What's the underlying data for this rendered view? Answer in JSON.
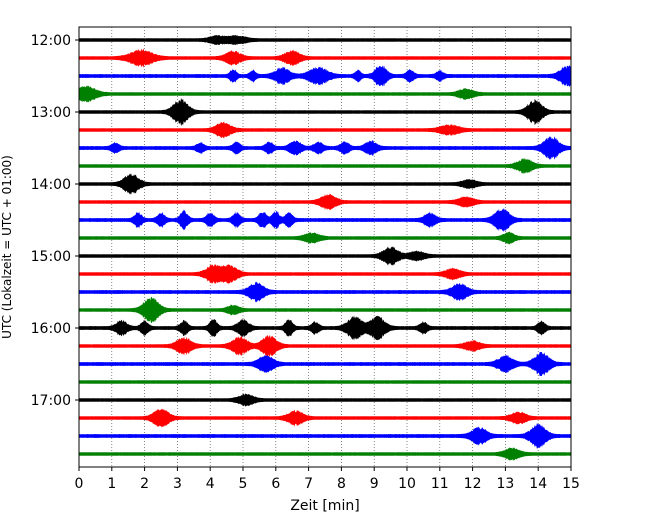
{
  "chart_data": {
    "type": "line",
    "title": "",
    "xlabel": "Zeit  [min]",
    "ylabel": "UTC (Lokalzeit = UTC + 01:00)",
    "xlim": [
      0,
      15
    ],
    "x_ticks": [
      "0",
      "1",
      "2",
      "3",
      "4",
      "5",
      "6",
      "7",
      "8",
      "9",
      "10",
      "11",
      "12",
      "13",
      "14",
      "15"
    ],
    "y_tick_labels": [
      "12:00",
      "13:00",
      "14:00",
      "15:00",
      "16:00",
      "17:00"
    ],
    "grid": "vertical-dotted",
    "colors_cycle": [
      "#000000",
      "#ff0000",
      "#0000ff",
      "#008000"
    ],
    "traces": [
      {
        "start": "12:00",
        "color": "#000000",
        "noise": 0.12,
        "events": [
          [
            4.2,
            0.2,
            0.8
          ],
          [
            4.8,
            0.25,
            0.8
          ]
        ]
      },
      {
        "start": "12:15",
        "color": "#ff0000",
        "noise": 0.12,
        "events": [
          [
            1.9,
            0.3,
            1.8
          ],
          [
            4.7,
            0.2,
            1.5
          ],
          [
            6.5,
            0.2,
            1.6
          ]
        ]
      },
      {
        "start": "12:30",
        "color": "#0000ff",
        "noise": 0.15,
        "events": [
          [
            4.7,
            0.08,
            1.5
          ],
          [
            5.3,
            0.08,
            1.2
          ],
          [
            6.2,
            0.2,
            1.8
          ],
          [
            7.3,
            0.25,
            1.8
          ],
          [
            8.5,
            0.08,
            1.2
          ],
          [
            9.2,
            0.15,
            2.5
          ],
          [
            10.1,
            0.1,
            1.2
          ],
          [
            11.0,
            0.1,
            1.0
          ],
          [
            14.9,
            0.2,
            2.2
          ]
        ]
      },
      {
        "start": "12:45",
        "color": "#008000",
        "noise": 0.12,
        "events": [
          [
            0.2,
            0.25,
            1.8
          ],
          [
            11.8,
            0.2,
            1.0
          ]
        ]
      },
      {
        "start": "13:00",
        "color": "#000000",
        "noise": 0.12,
        "events": [
          [
            3.1,
            0.2,
            2.8
          ],
          [
            13.9,
            0.2,
            2.6
          ]
        ]
      },
      {
        "start": "13:15",
        "color": "#ff0000",
        "noise": 0.12,
        "events": [
          [
            4.4,
            0.2,
            1.6
          ],
          [
            11.3,
            0.25,
            1.0
          ]
        ]
      },
      {
        "start": "13:30",
        "color": "#0000ff",
        "noise": 0.15,
        "events": [
          [
            1.1,
            0.1,
            1.0
          ],
          [
            3.7,
            0.1,
            1.0
          ],
          [
            4.8,
            0.1,
            1.2
          ],
          [
            5.8,
            0.1,
            1.2
          ],
          [
            6.6,
            0.15,
            1.5
          ],
          [
            7.3,
            0.12,
            1.2
          ],
          [
            8.1,
            0.12,
            1.2
          ],
          [
            8.9,
            0.15,
            1.5
          ],
          [
            14.4,
            0.2,
            2.5
          ]
        ]
      },
      {
        "start": "13:45",
        "color": "#008000",
        "noise": 0.12,
        "events": [
          [
            13.6,
            0.2,
            1.5
          ]
        ]
      },
      {
        "start": "14:00",
        "color": "#000000",
        "noise": 0.12,
        "events": [
          [
            1.6,
            0.2,
            2.2
          ],
          [
            11.9,
            0.2,
            0.8
          ]
        ]
      },
      {
        "start": "14:15",
        "color": "#ff0000",
        "noise": 0.12,
        "events": [
          [
            7.6,
            0.2,
            1.6
          ],
          [
            11.8,
            0.2,
            1.0
          ]
        ]
      },
      {
        "start": "14:30",
        "color": "#0000ff",
        "noise": 0.15,
        "events": [
          [
            1.8,
            0.1,
            1.5
          ],
          [
            2.5,
            0.1,
            1.5
          ],
          [
            3.2,
            0.1,
            2.0
          ],
          [
            4.0,
            0.1,
            1.5
          ],
          [
            4.8,
            0.1,
            1.5
          ],
          [
            5.6,
            0.1,
            1.8
          ],
          [
            6.0,
            0.1,
            1.8
          ],
          [
            6.4,
            0.1,
            1.5
          ],
          [
            10.7,
            0.15,
            1.5
          ],
          [
            12.9,
            0.2,
            2.5
          ]
        ]
      },
      {
        "start": "14:45",
        "color": "#008000",
        "noise": 0.12,
        "events": [
          [
            7.1,
            0.2,
            1.0
          ],
          [
            13.1,
            0.15,
            1.2
          ]
        ]
      },
      {
        "start": "15:00",
        "color": "#000000",
        "noise": 0.12,
        "events": [
          [
            9.5,
            0.2,
            2.0
          ],
          [
            10.3,
            0.2,
            0.9
          ]
        ]
      },
      {
        "start": "15:15",
        "color": "#ff0000",
        "noise": 0.12,
        "events": [
          [
            4.1,
            0.2,
            2.0
          ],
          [
            4.6,
            0.2,
            1.8
          ],
          [
            11.4,
            0.2,
            1.1
          ]
        ]
      },
      {
        "start": "15:30",
        "color": "#0000ff",
        "noise": 0.15,
        "events": [
          [
            5.4,
            0.2,
            2.0
          ],
          [
            11.6,
            0.2,
            1.8
          ]
        ]
      },
      {
        "start": "15:45",
        "color": "#008000",
        "noise": 0.12,
        "events": [
          [
            2.2,
            0.2,
            2.8
          ],
          [
            4.7,
            0.15,
            1.0
          ]
        ]
      },
      {
        "start": "16:00",
        "color": "#000000",
        "noise": 0.15,
        "events": [
          [
            1.3,
            0.15,
            1.5
          ],
          [
            2.0,
            0.1,
            1.5
          ],
          [
            3.2,
            0.1,
            1.5
          ],
          [
            4.1,
            0.1,
            2.0
          ],
          [
            5.0,
            0.15,
            1.8
          ],
          [
            6.4,
            0.1,
            1.8
          ],
          [
            7.2,
            0.1,
            1.2
          ],
          [
            8.4,
            0.2,
            2.5
          ],
          [
            9.1,
            0.2,
            2.5
          ],
          [
            10.5,
            0.1,
            1.2
          ],
          [
            14.1,
            0.1,
            1.5
          ]
        ]
      },
      {
        "start": "16:15",
        "color": "#ff0000",
        "noise": 0.12,
        "events": [
          [
            3.2,
            0.2,
            1.8
          ],
          [
            4.9,
            0.2,
            2.0
          ],
          [
            5.8,
            0.2,
            2.2
          ],
          [
            12.0,
            0.2,
            1.0
          ]
        ]
      },
      {
        "start": "16:30",
        "color": "#0000ff",
        "noise": 0.15,
        "events": [
          [
            5.7,
            0.2,
            1.8
          ],
          [
            13.0,
            0.2,
            1.8
          ],
          [
            14.1,
            0.2,
            2.5
          ]
        ]
      },
      {
        "start": "16:45",
        "color": "#008000",
        "noise": 0.12,
        "events": []
      },
      {
        "start": "17:00",
        "color": "#000000",
        "noise": 0.12,
        "events": [
          [
            5.1,
            0.2,
            1.2
          ]
        ]
      },
      {
        "start": "17:15",
        "color": "#ff0000",
        "noise": 0.12,
        "events": [
          [
            2.5,
            0.2,
            2.0
          ],
          [
            6.6,
            0.2,
            1.5
          ],
          [
            13.4,
            0.2,
            1.2
          ]
        ]
      },
      {
        "start": "17:30",
        "color": "#0000ff",
        "noise": 0.15,
        "events": [
          [
            12.2,
            0.2,
            1.8
          ],
          [
            14.0,
            0.2,
            2.6
          ]
        ]
      },
      {
        "start": "17:45",
        "color": "#008000",
        "noise": 0.12,
        "events": [
          [
            13.2,
            0.2,
            1.2
          ]
        ]
      }
    ]
  }
}
